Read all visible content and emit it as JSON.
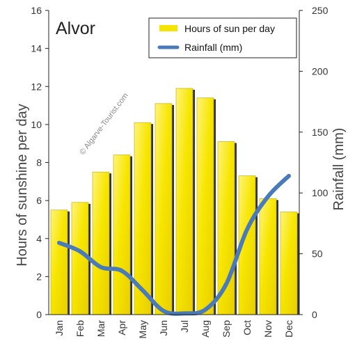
{
  "chart_data": {
    "type": "bar",
    "title": "Alvor",
    "watermark": "© Algarve-Tourist.com",
    "categories": [
      "Jan",
      "Feb",
      "Mar",
      "Apr",
      "May",
      "Jun",
      "Jul",
      "Aug",
      "Sep",
      "Oct",
      "Nov",
      "Dec"
    ],
    "series": [
      {
        "name": "Hours of sun per day",
        "type": "bar",
        "axis": "left",
        "values": [
          5.5,
          5.9,
          7.5,
          8.4,
          10.1,
          11.1,
          11.9,
          11.4,
          9.1,
          7.3,
          6.1,
          5.4
        ]
      },
      {
        "name": "Rainfall (mm)",
        "type": "line",
        "axis": "right",
        "values": [
          59,
          52,
          39,
          36,
          20,
          3,
          1,
          4,
          25,
          70,
          97,
          114
        ]
      }
    ],
    "ylabel": "Hours of sunshine per day",
    "ylabel_right": "Rainfall (mm)",
    "ylim": [
      0,
      16
    ],
    "ylim_right": [
      0,
      250
    ],
    "yticks": [
      "0",
      "2",
      "4",
      "6",
      "8",
      "10",
      "12",
      "14",
      "16"
    ],
    "yticks_right": [
      "0",
      "50",
      "100",
      "150",
      "200",
      "250"
    ],
    "grid": false,
    "legend_position": "top-right",
    "colors": {
      "bar": "#f5e400",
      "bar_edge": "#b8a800",
      "bar_shadow": "#333333",
      "line": "#4a7ab8"
    }
  }
}
